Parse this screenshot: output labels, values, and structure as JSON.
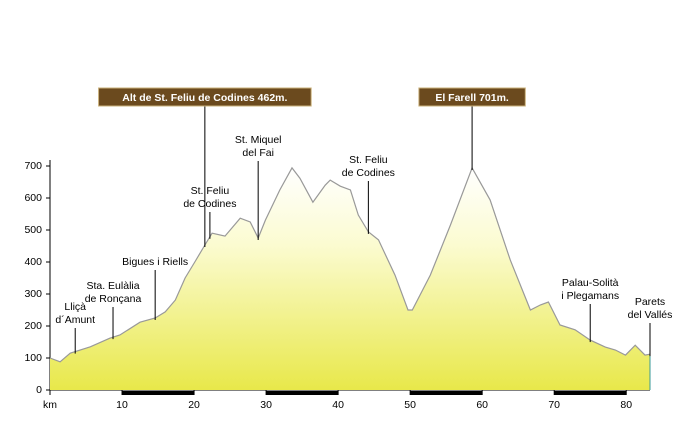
{
  "chart_data": {
    "type": "area",
    "x": [
      0,
      1.4,
      2.8,
      5.6,
      8.3,
      9.7,
      12.5,
      14.6,
      16,
      17.4,
      18.75,
      20.1,
      21.5,
      22.5,
      24.3,
      26.4,
      27.8,
      28.9,
      29.9,
      31.9,
      33.6,
      34.7,
      36.5,
      38.2,
      38.9,
      40.3,
      41.7,
      42.8,
      44.2,
      45.6,
      47.9,
      49.7,
      50.3,
      52.8,
      55.6,
      58.6,
      61.1,
      63.9,
      66.7,
      68.1,
      69.2,
      70.8,
      72.9,
      75,
      77.1,
      78.5,
      79.9,
      81.25,
      82.6,
      83.3
    ],
    "values": [
      100,
      88,
      115,
      135,
      162,
      172,
      212,
      225,
      244,
      281,
      350,
      400,
      453,
      490,
      481,
      537,
      525,
      475,
      531,
      625,
      694,
      662,
      587,
      640,
      656,
      637,
      625,
      547,
      494,
      469,
      359,
      250,
      250,
      359,
      516,
      694,
      594,
      406,
      250,
      266,
      275,
      203,
      188,
      156,
      134,
      125,
      109,
      140,
      109,
      112
    ],
    "color": "#e8e84a",
    "xlim": [
      0,
      83.3
    ],
    "ylim": [
      0,
      700
    ],
    "xticks": [
      {
        "value": 0,
        "label": "km"
      },
      10,
      20,
      30,
      40,
      50,
      60,
      70,
      80
    ],
    "yticks": [
      0,
      100,
      200,
      300,
      400,
      500,
      600,
      700
    ],
    "annotations": [
      {
        "text": [
          "Alt de St. Feliu de Codines  462m."
        ],
        "x": 21.5,
        "boxed": true
      },
      {
        "text": [
          "El Farell  701m."
        ],
        "x": 58.6,
        "boxed": true
      },
      {
        "text": [
          "Lliçà",
          "d´Amunt"
        ],
        "x": 3.5
      },
      {
        "text": [
          "Sta. Eulàlia",
          "de Ronçana"
        ],
        "x": 8.75
      },
      {
        "text": [
          "Bigues i Riells"
        ],
        "x": 14.6
      },
      {
        "text": [
          "St. Feliu",
          "de Codines"
        ],
        "x": 22.2
      },
      {
        "text": [
          "St. Miquel",
          "del Fai"
        ],
        "x": 28.9
      },
      {
        "text": [
          "St. Feliu",
          "de Codines"
        ],
        "x": 44.2
      },
      {
        "text": [
          "Palau-Solità",
          "i Plegamans"
        ],
        "x": 75
      },
      {
        "text": [
          "Parets",
          "del Vallés"
        ],
        "x": 83.3
      }
    ]
  }
}
